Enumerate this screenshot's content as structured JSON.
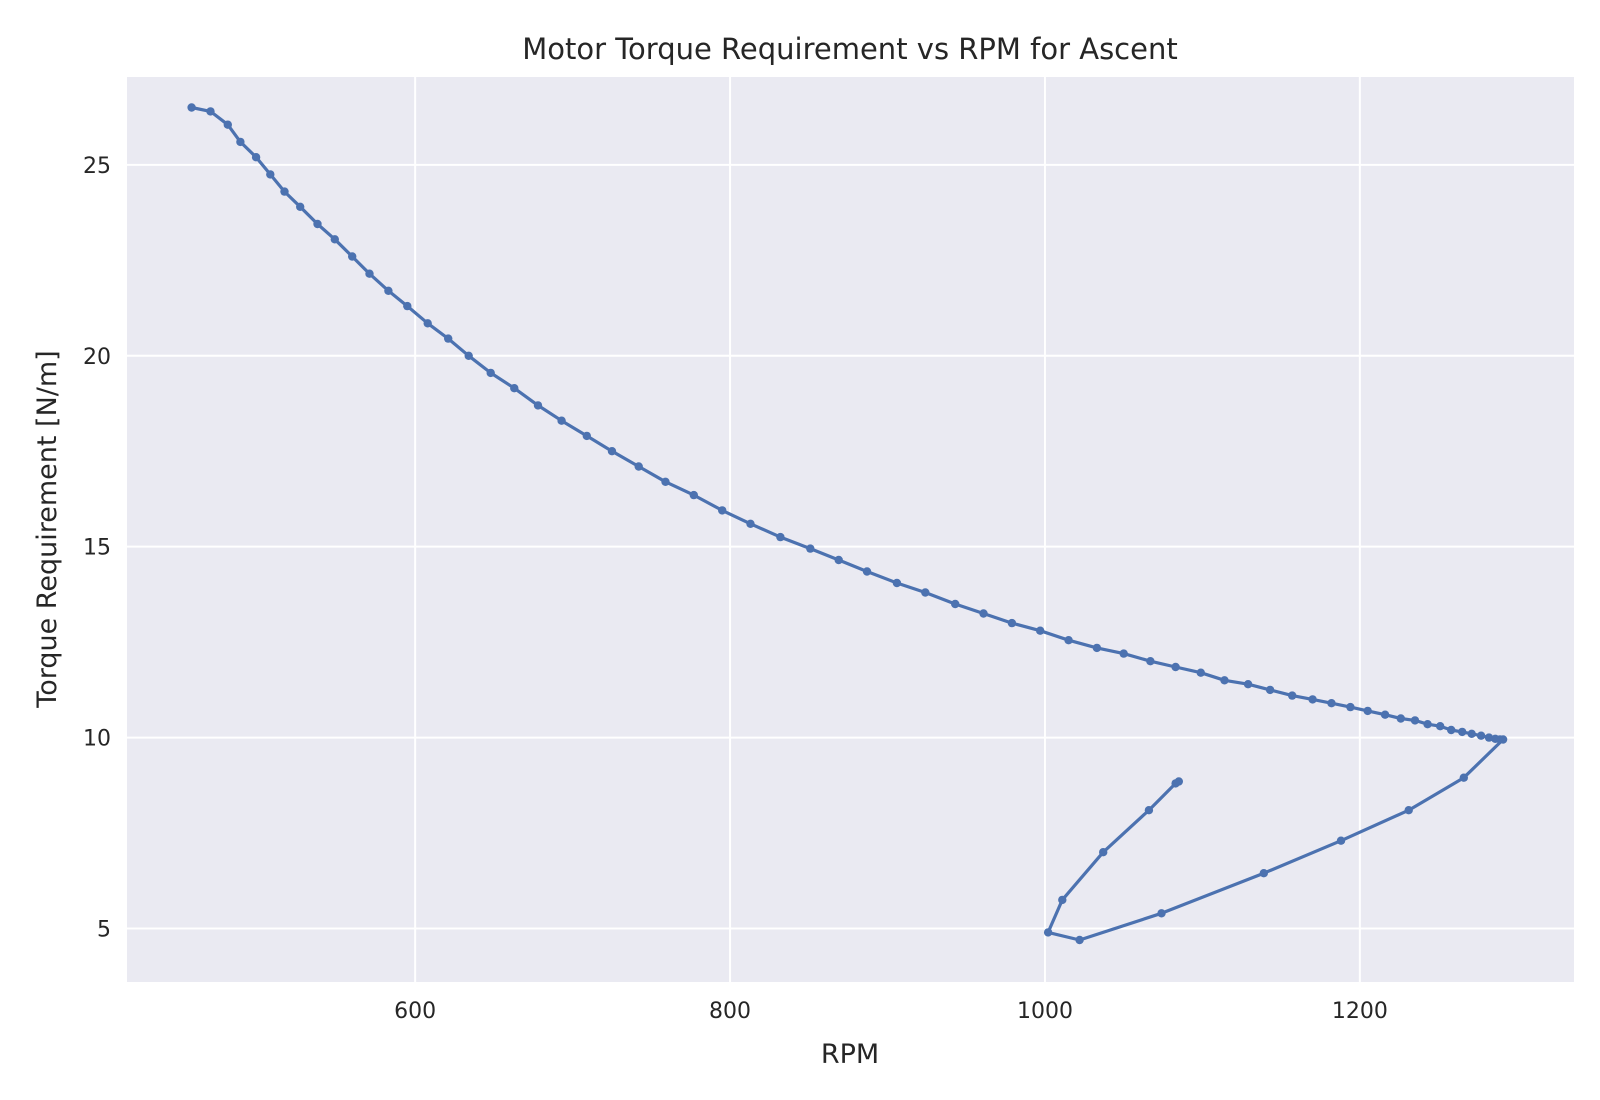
{
  "chart_data": {
    "type": "line",
    "title": "Motor Torque Requirement vs RPM for Ascent",
    "xlabel": "RPM",
    "ylabel": "Torque Requirement [N/m]",
    "xlim": [
      417,
      1336
    ],
    "ylim": [
      3.6,
      27.3
    ],
    "xticks": [
      600,
      800,
      1000,
      1200
    ],
    "yticks": [
      5,
      10,
      15,
      20,
      25
    ],
    "grid": true,
    "marker": "circle",
    "colors": {
      "series": "#4c72b0",
      "background": "#eaeaf2",
      "grid": "#ffffff"
    },
    "series": [
      {
        "points": [
          [
            458,
            26.5
          ],
          [
            470,
            26.4
          ],
          [
            481,
            26.05
          ],
          [
            489,
            25.6
          ],
          [
            499,
            25.2
          ],
          [
            508,
            24.75
          ],
          [
            517,
            24.3
          ],
          [
            527,
            23.9
          ],
          [
            538,
            23.45
          ],
          [
            549,
            23.05
          ],
          [
            560,
            22.6
          ],
          [
            571,
            22.15
          ],
          [
            583,
            21.7
          ],
          [
            595,
            21.3
          ],
          [
            608,
            20.85
          ],
          [
            621,
            20.45
          ],
          [
            634,
            20.0
          ],
          [
            648,
            19.55
          ],
          [
            663,
            19.15
          ],
          [
            678,
            18.7
          ],
          [
            693,
            18.3
          ],
          [
            709,
            17.9
          ],
          [
            725,
            17.5
          ],
          [
            742,
            17.1
          ],
          [
            759,
            16.7
          ],
          [
            777,
            16.35
          ],
          [
            795,
            15.95
          ],
          [
            813,
            15.6
          ],
          [
            832,
            15.25
          ],
          [
            851,
            14.95
          ],
          [
            869,
            14.65
          ],
          [
            887,
            14.35
          ],
          [
            906,
            14.05
          ],
          [
            924,
            13.8
          ],
          [
            943,
            13.5
          ],
          [
            961,
            13.25
          ],
          [
            979,
            13.0
          ],
          [
            997,
            12.8
          ],
          [
            1015,
            12.55
          ],
          [
            1033,
            12.35
          ],
          [
            1050,
            12.2
          ],
          [
            1067,
            12.0
          ],
          [
            1083,
            11.85
          ],
          [
            1099,
            11.7
          ],
          [
            1114,
            11.5
          ],
          [
            1129,
            11.4
          ],
          [
            1143,
            11.25
          ],
          [
            1157,
            11.1
          ],
          [
            1170,
            11.0
          ],
          [
            1182,
            10.9
          ],
          [
            1194,
            10.8
          ],
          [
            1205,
            10.7
          ],
          [
            1216,
            10.6
          ],
          [
            1226,
            10.5
          ],
          [
            1235,
            10.45
          ],
          [
            1243,
            10.35
          ],
          [
            1251,
            10.3
          ],
          [
            1258,
            10.2
          ],
          [
            1265,
            10.15
          ],
          [
            1271,
            10.1
          ],
          [
            1277,
            10.05
          ],
          [
            1282,
            10.0
          ],
          [
            1286,
            9.97
          ],
          [
            1289,
            9.95
          ],
          [
            1291,
            9.95
          ],
          [
            1266,
            8.95
          ],
          [
            1231,
            8.1
          ],
          [
            1188,
            7.3
          ],
          [
            1139,
            6.45
          ],
          [
            1074,
            5.4
          ],
          [
            1022,
            4.7
          ],
          [
            1002,
            4.9
          ],
          [
            1011,
            5.75
          ],
          [
            1037,
            7.0
          ],
          [
            1066,
            8.1
          ],
          [
            1083,
            8.8
          ],
          [
            1085,
            8.85
          ]
        ]
      }
    ]
  }
}
